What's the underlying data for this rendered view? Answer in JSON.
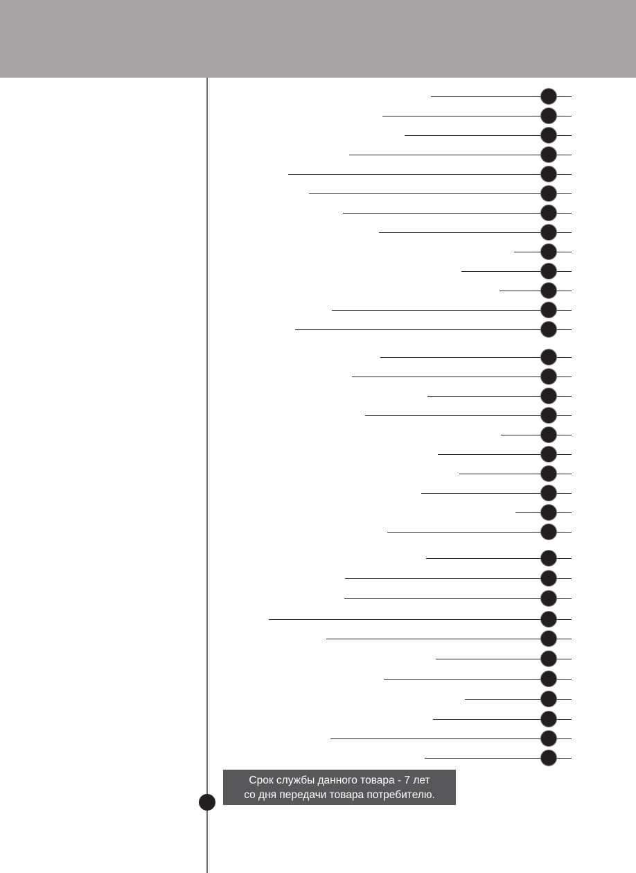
{
  "colors": {
    "header": "#a7a5a6",
    "dot": "#231f20",
    "notice_bg": "#58585a"
  },
  "notice": {
    "line1": "Срок службы данного товара - 7 лет",
    "line2": "со дня передачи товара потребителю."
  }
}
